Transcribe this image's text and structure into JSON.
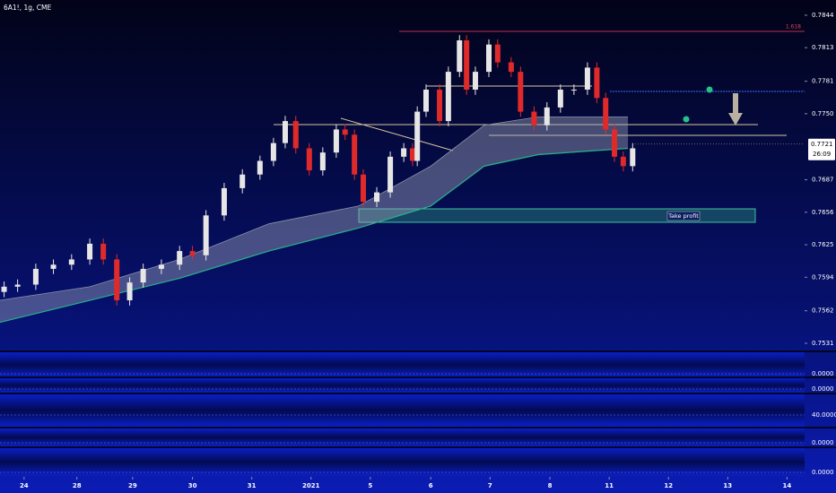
{
  "chart_data": {
    "type": "candlestick",
    "title": "6A1!, 1g, CME",
    "up_color": "#e6e6e6",
    "down_color": "#e02a2a",
    "band_color": "#26b28a",
    "xlim": [
      -0.41,
      13.3
    ],
    "ylim": [
      0.78585,
      0.7525
    ],
    "xticks": [
      {
        "value": 0,
        "label": "24"
      },
      {
        "value": 0.9,
        "label": "28"
      },
      {
        "value": 1.85,
        "label": "29"
      },
      {
        "value": 2.87,
        "label": "30"
      },
      {
        "value": 3.88,
        "label": "31"
      },
      {
        "value": 4.89,
        "label": "2021"
      },
      {
        "value": 5.9,
        "label": "5"
      },
      {
        "value": 6.93,
        "label": "6"
      },
      {
        "value": 7.94,
        "label": "7"
      },
      {
        "value": 8.96,
        "label": "8"
      },
      {
        "value": 9.97,
        "label": "11"
      },
      {
        "value": 10.98,
        "label": "12"
      },
      {
        "value": 11.99,
        "label": "13"
      },
      {
        "value": 13.0,
        "label": "14"
      }
    ],
    "yticks": [
      0.7844,
      0.7813,
      0.7781,
      {
        "value": 0.775,
        "label": "0.7750"
      },
      0.7687,
      0.7656,
      0.7625,
      0.7594,
      0.7562,
      0.7531
    ],
    "last_price": 0.7721,
    "countdown": "26:09",
    "annotation": "1.618",
    "zone_label": "Take profit",
    "x": [
      -0.34,
      -0.11,
      0.2,
      0.5,
      0.81,
      1.12,
      1.35,
      1.58,
      1.8,
      2.03,
      2.34,
      2.65,
      2.87,
      3.1,
      3.41,
      3.72,
      4.02,
      4.25,
      4.45,
      4.63,
      4.86,
      5.09,
      5.32,
      5.47,
      5.63,
      5.78,
      6.01,
      6.24,
      6.47,
      6.62,
      6.7,
      6.85,
      7.08,
      7.23,
      7.42,
      7.54,
      7.69,
      7.92,
      8.07,
      8.3,
      8.46,
      8.69,
      8.91,
      9.14,
      9.37,
      9.6,
      9.76,
      9.91,
      10.06,
      10.21,
      10.37
    ],
    "open": [
      0.758,
      0.7585,
      0.7587,
      0.7602,
      0.7606,
      0.7611,
      0.7626,
      0.7611,
      0.7572,
      0.7589,
      0.7602,
      0.7606,
      0.7619,
      0.7615,
      0.7653,
      0.7679,
      0.7692,
      0.7705,
      0.7722,
      0.7743,
      0.7717,
      0.7696,
      0.7713,
      0.7735,
      0.773,
      0.7692,
      0.7666,
      0.7675,
      0.7709,
      0.7717,
      0.7705,
      0.7752,
      0.7773,
      0.7743,
      0.779,
      0.782,
      0.7773,
      0.779,
      0.7816,
      0.7799,
      0.779,
      0.7752,
      0.7739,
      0.7756,
      0.7773,
      0.7773,
      0.7794,
      0.7765,
      0.7735,
      0.7709,
      0.77
    ],
    "high": [
      0.759,
      0.7592,
      0.7607,
      0.7611,
      0.7616,
      0.7631,
      0.7631,
      0.7616,
      0.7594,
      0.7607,
      0.7611,
      0.7624,
      0.7624,
      0.7658,
      0.7684,
      0.7697,
      0.771,
      0.7727,
      0.7748,
      0.7748,
      0.7722,
      0.7718,
      0.774,
      0.774,
      0.7735,
      0.7697,
      0.768,
      0.7714,
      0.7722,
      0.7722,
      0.7757,
      0.7778,
      0.7778,
      0.7795,
      0.7825,
      0.7825,
      0.7795,
      0.7821,
      0.7821,
      0.7804,
      0.7795,
      0.7757,
      0.7761,
      0.7778,
      0.7778,
      0.7799,
      0.7799,
      0.777,
      0.774,
      0.7714,
      0.7722
    ],
    "low": [
      0.7575,
      0.758,
      0.7582,
      0.7597,
      0.7601,
      0.7606,
      0.7606,
      0.7567,
      0.7567,
      0.7584,
      0.7597,
      0.7601,
      0.761,
      0.761,
      0.7648,
      0.7674,
      0.7687,
      0.77,
      0.7717,
      0.7712,
      0.7691,
      0.7691,
      0.7708,
      0.7725,
      0.7687,
      0.7661,
      0.7661,
      0.767,
      0.7704,
      0.77,
      0.77,
      0.7747,
      0.7738,
      0.7738,
      0.7785,
      0.7768,
      0.7768,
      0.7785,
      0.7794,
      0.7785,
      0.7747,
      0.7734,
      0.7734,
      0.7751,
      0.7768,
      0.7768,
      0.776,
      0.773,
      0.7704,
      0.7695,
      0.7695
    ],
    "close": [
      0.7585,
      0.7587,
      0.7602,
      0.7606,
      0.7611,
      0.7626,
      0.7611,
      0.7572,
      0.7589,
      0.7602,
      0.7606,
      0.7619,
      0.7615,
      0.7653,
      0.7679,
      0.7692,
      0.7705,
      0.7722,
      0.7743,
      0.7717,
      0.7696,
      0.7713,
      0.7735,
      0.773,
      0.7692,
      0.7666,
      0.7675,
      0.7709,
      0.7717,
      0.7705,
      0.7752,
      0.7773,
      0.7743,
      0.779,
      0.782,
      0.7773,
      0.779,
      0.7816,
      0.7799,
      0.779,
      0.7752,
      0.7739,
      0.7756,
      0.7773,
      0.7773,
      0.7794,
      0.7765,
      0.7735,
      0.7709,
      0.77,
      0.7717
    ],
    "band": {
      "x": [
        -0.41,
        1.12,
        2.65,
        4.17,
        5.7,
        6.93,
        7.84,
        8.76,
        10.29
      ],
      "upper": [
        0.7572,
        0.7585,
        0.7611,
        0.7645,
        0.7662,
        0.77,
        0.7739,
        0.7747,
        0.7747
      ],
      "lower": [
        0.7551,
        0.7572,
        0.7593,
        0.7619,
        0.7641,
        0.7662,
        0.77,
        0.7711,
        0.7717
      ]
    },
    "panes": [
      {
        "ticks": [
          {
            "value": 0,
            "label": "0.0000"
          }
        ]
      },
      {
        "ticks": [
          {
            "value": 0,
            "label": "0.0000"
          }
        ]
      },
      {
        "ticks": [
          {
            "value": 40,
            "label": "40.0000"
          }
        ]
      },
      {
        "ticks": [
          {
            "value": 0,
            "label": "0.0000"
          }
        ]
      },
      {
        "ticks": [
          {
            "value": 0,
            "label": "0.0000"
          }
        ]
      }
    ]
  }
}
